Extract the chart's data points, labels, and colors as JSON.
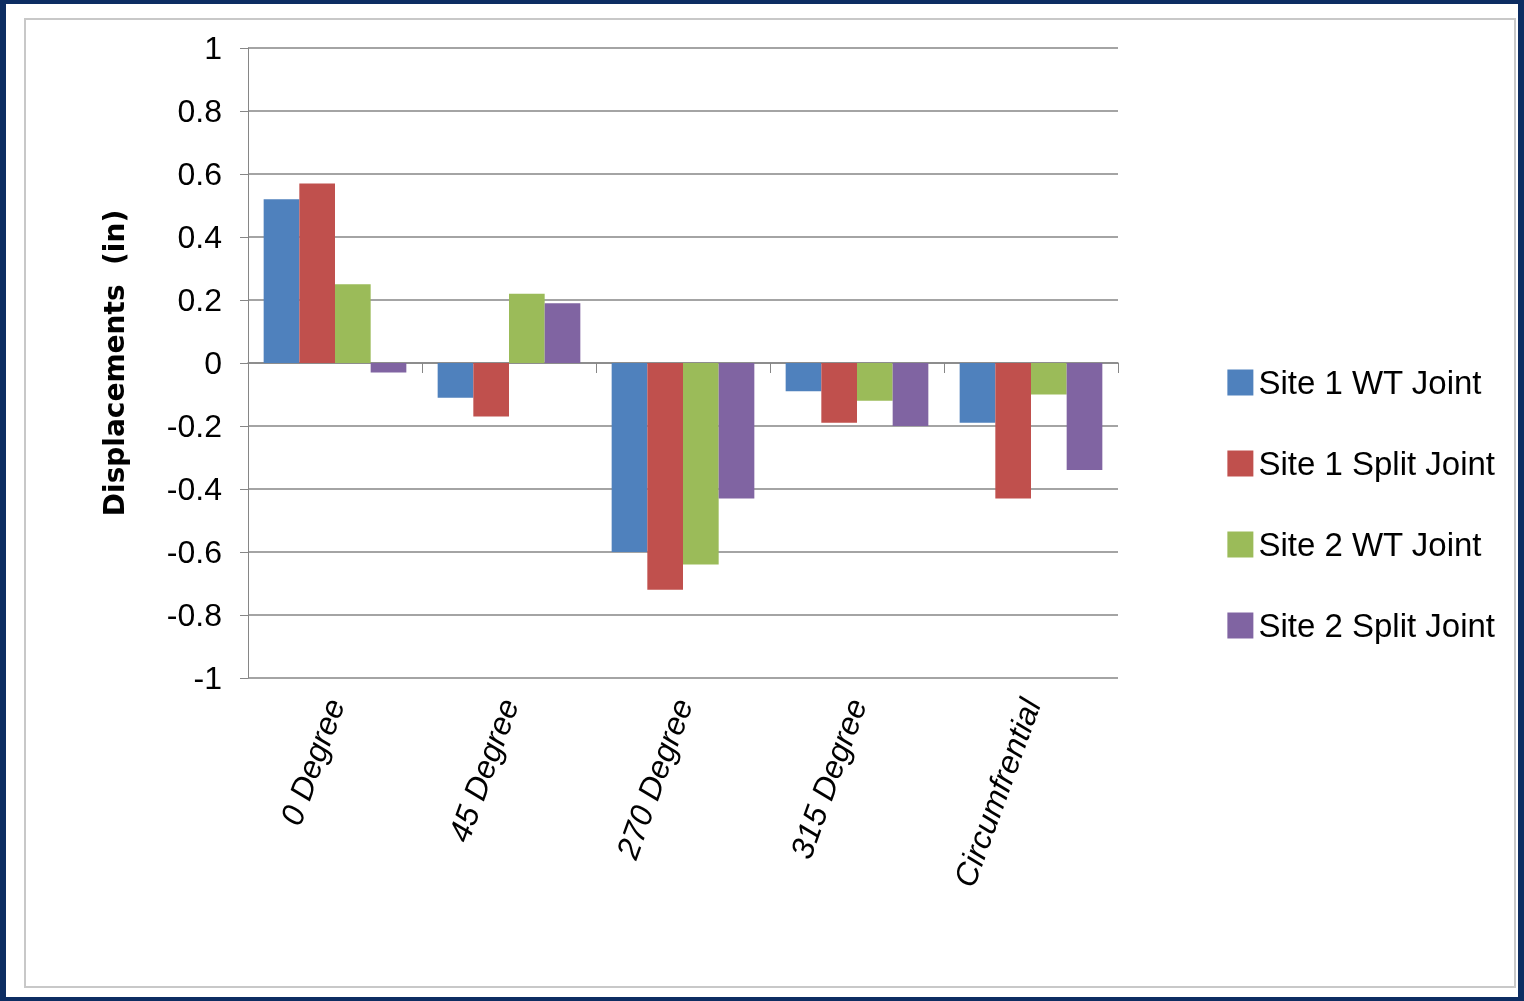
{
  "chart_data": {
    "type": "bar",
    "ylabel": "Displacements  (in)",
    "categories": [
      "0 Degree",
      "45 Degree",
      "270 Degree",
      "315 Degree",
      "Circumfrential"
    ],
    "series": [
      {
        "name": "Site 1 WT Joint",
        "color": "#4f81bd",
        "values": [
          0.52,
          -0.11,
          -0.6,
          -0.09,
          -0.19
        ]
      },
      {
        "name": "Site 1 Split Joint",
        "color": "#c0504d",
        "values": [
          0.57,
          -0.17,
          -0.72,
          -0.19,
          -0.43
        ]
      },
      {
        "name": "Site 2 WT Joint",
        "color": "#9bbb59",
        "values": [
          0.25,
          0.22,
          -0.64,
          -0.12,
          -0.1
        ]
      },
      {
        "name": "Site 2 Split Joint",
        "color": "#8064a2",
        "values": [
          -0.03,
          0.19,
          -0.43,
          -0.2,
          -0.34
        ]
      }
    ],
    "ylim": [
      -1,
      1
    ],
    "yticks": [
      -1,
      -0.8,
      -0.6,
      -0.4,
      -0.2,
      0,
      0.2,
      0.4,
      0.6,
      0.8,
      1
    ],
    "grid": "y",
    "legend": "right"
  }
}
